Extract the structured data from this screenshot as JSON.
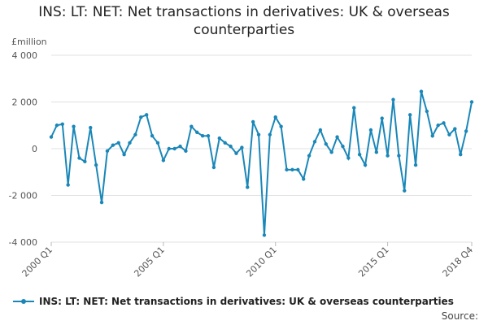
{
  "chart_data": {
    "type": "line",
    "title": "INS: LT: NET: Net transactions in derivatives: UK & overseas counterparties",
    "ylabel": "£million",
    "xlabel": "",
    "ylim": [
      -4000,
      4000
    ],
    "y_ticks": [
      -4000,
      -2000,
      0,
      2000,
      4000
    ],
    "y_tick_labels": [
      "-4 000",
      "-2 000",
      "0",
      "2 000",
      "4 000"
    ],
    "x_tick_labels": [
      "2000 Q1",
      "2005 Q1",
      "2010 Q1",
      "2015 Q1",
      "2018 Q4"
    ],
    "x_tick_index": [
      0,
      20,
      40,
      60,
      75
    ],
    "grid": true,
    "legend": "bottom",
    "x": [
      "2000 Q1",
      "2000 Q2",
      "2000 Q3",
      "2000 Q4",
      "2001 Q1",
      "2001 Q2",
      "2001 Q3",
      "2001 Q4",
      "2002 Q1",
      "2002 Q2",
      "2002 Q3",
      "2002 Q4",
      "2003 Q1",
      "2003 Q2",
      "2003 Q3",
      "2003 Q4",
      "2004 Q1",
      "2004 Q2",
      "2004 Q3",
      "2004 Q4",
      "2005 Q1",
      "2005 Q2",
      "2005 Q3",
      "2005 Q4",
      "2006 Q1",
      "2006 Q2",
      "2006 Q3",
      "2006 Q4",
      "2007 Q1",
      "2007 Q2",
      "2007 Q3",
      "2007 Q4",
      "2008 Q1",
      "2008 Q2",
      "2008 Q3",
      "2008 Q4",
      "2009 Q1",
      "2009 Q2",
      "2009 Q3",
      "2009 Q4",
      "2010 Q1",
      "2010 Q2",
      "2010 Q3",
      "2010 Q4",
      "2011 Q1",
      "2011 Q2",
      "2011 Q3",
      "2011 Q4",
      "2012 Q1",
      "2012 Q2",
      "2012 Q3",
      "2012 Q4",
      "2013 Q1",
      "2013 Q2",
      "2013 Q3",
      "2013 Q4",
      "2014 Q1",
      "2014 Q2",
      "2014 Q3",
      "2014 Q4",
      "2015 Q1",
      "2015 Q2",
      "2015 Q3",
      "2015 Q4",
      "2016 Q1",
      "2016 Q2",
      "2016 Q3",
      "2016 Q4",
      "2017 Q1",
      "2017 Q2",
      "2017 Q3",
      "2017 Q4",
      "2018 Q1",
      "2018 Q2",
      "2018 Q3",
      "2018 Q4"
    ],
    "series": [
      {
        "name": "INS: LT: NET: Net transactions in derivatives: UK & overseas counterparties",
        "color": "#1a87b8",
        "values": [
          500,
          1000,
          1050,
          -1550,
          950,
          -400,
          -550,
          900,
          -700,
          -2300,
          -100,
          150,
          250,
          -250,
          250,
          600,
          1350,
          1450,
          550,
          250,
          -500,
          0,
          0,
          100,
          -100,
          950,
          700,
          550,
          550,
          -800,
          450,
          250,
          100,
          -200,
          50,
          -1650,
          1150,
          600,
          -3700,
          600,
          1350,
          950,
          -900,
          -900,
          -900,
          -1300,
          -300,
          300,
          800,
          200,
          -150,
          500,
          100,
          -400,
          1750,
          -250,
          -700,
          800,
          -150,
          1300,
          -300,
          2100,
          -300,
          -1800,
          1450,
          -700,
          2450,
          1600,
          550,
          1000,
          1100,
          600,
          850,
          -250,
          750,
          2000
        ]
      }
    ]
  },
  "source": "Source:"
}
